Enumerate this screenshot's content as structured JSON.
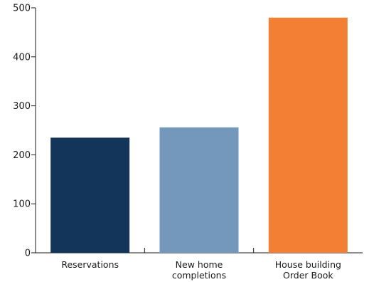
{
  "chart_data": {
    "type": "bar",
    "categories": [
      [
        "Reservations"
      ],
      [
        "New home",
        "completions"
      ],
      [
        "House building",
        "Order Book"
      ]
    ],
    "values": [
      235,
      256,
      480
    ],
    "colors": [
      "#13355a",
      "#7497bc",
      "#f37f35"
    ],
    "ylim": [
      0,
      500
    ],
    "yticks": [
      0,
      100,
      200,
      300,
      400,
      500
    ],
    "title": "",
    "xlabel": "",
    "ylabel": "",
    "grid": false,
    "legend": "none"
  }
}
